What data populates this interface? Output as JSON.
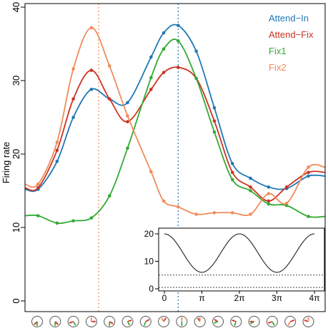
{
  "chart_data": {
    "type": "line",
    "title": "",
    "ylabel": "Firing rate",
    "xlabel": "",
    "ylim": [
      -1,
      40
    ],
    "yticks": [
      0,
      10,
      20,
      30,
      40
    ],
    "grid": false,
    "legend_position": "top-right",
    "x_count": 16,
    "vline_positions": [
      3.4,
      7.8
    ],
    "series": [
      {
        "name": "Attend−In",
        "color": "#1f78b4",
        "points": [
          [
            0.05,
            15.2
          ],
          [
            1.1,
            19.0
          ],
          [
            2.0,
            25.0
          ],
          [
            3.0,
            28.8
          ],
          [
            4.0,
            27.5
          ],
          [
            5.0,
            27.0
          ],
          [
            6.3,
            33.2
          ],
          [
            7.0,
            36.5
          ],
          [
            7.8,
            37.5
          ],
          [
            8.8,
            34.0
          ],
          [
            9.8,
            26.3
          ],
          [
            10.8,
            18.7
          ],
          [
            11.8,
            16.7
          ],
          [
            12.8,
            15.5
          ],
          [
            13.8,
            15.3
          ],
          [
            15.0,
            17.0
          ]
        ]
      },
      {
        "name": "Attend−Fix",
        "color": "#cc3322",
        "points": [
          [
            0.05,
            15.4
          ],
          [
            1.1,
            20.5
          ],
          [
            2.0,
            27.5
          ],
          [
            3.0,
            31.4
          ],
          [
            4.0,
            27.5
          ],
          [
            5.0,
            24.4
          ],
          [
            6.3,
            28.8
          ],
          [
            7.0,
            31.1
          ],
          [
            7.8,
            31.8
          ],
          [
            8.8,
            30.3
          ],
          [
            9.8,
            24.5
          ],
          [
            10.8,
            17.5
          ],
          [
            11.8,
            15.5
          ],
          [
            12.8,
            13.6
          ],
          [
            13.8,
            15.5
          ],
          [
            15.0,
            17.5
          ]
        ]
      },
      {
        "name": "Fix1",
        "color": "#33aa33",
        "points": [
          [
            0.05,
            11.6
          ],
          [
            1.1,
            10.6
          ],
          [
            2.0,
            10.9
          ],
          [
            3.0,
            11.3
          ],
          [
            4.0,
            14.3
          ],
          [
            5.0,
            20.8
          ],
          [
            6.3,
            30.4
          ],
          [
            7.0,
            34.3
          ],
          [
            7.8,
            35.4
          ],
          [
            8.8,
            30.3
          ],
          [
            9.8,
            23.0
          ],
          [
            10.8,
            16.5
          ],
          [
            11.8,
            15.0
          ],
          [
            12.8,
            13.2
          ],
          [
            13.8,
            13.0
          ],
          [
            15.0,
            11.5
          ]
        ]
      },
      {
        "name": "Fix2",
        "color": "#f08c5a",
        "points": [
          [
            0.05,
            15.9
          ],
          [
            1.1,
            21.6
          ],
          [
            2.0,
            31.6
          ],
          [
            3.0,
            37.2
          ],
          [
            4.0,
            32.0
          ],
          [
            5.0,
            25.2
          ],
          [
            6.3,
            17.6
          ],
          [
            7.0,
            13.6
          ],
          [
            7.8,
            12.8
          ],
          [
            8.8,
            11.8
          ],
          [
            9.8,
            12.0
          ],
          [
            10.8,
            12.0
          ],
          [
            11.8,
            11.8
          ],
          [
            12.8,
            14.6
          ],
          [
            13.8,
            13.3
          ],
          [
            15.0,
            18.2
          ]
        ]
      }
    ],
    "inset": {
      "type": "line",
      "ylim": [
        0,
        22
      ],
      "yticks": [
        0,
        10,
        20
      ],
      "xticks": [
        "0",
        "π",
        "2π",
        "3π",
        "4π"
      ],
      "curve": {
        "shape": "cosine",
        "mean": 13.0,
        "amplitude": 7.0,
        "xlim_pi": [
          0,
          4
        ]
      },
      "dotted_lines_y": [
        5.0,
        0.5
      ]
    },
    "bottom_icons_count": 16
  }
}
